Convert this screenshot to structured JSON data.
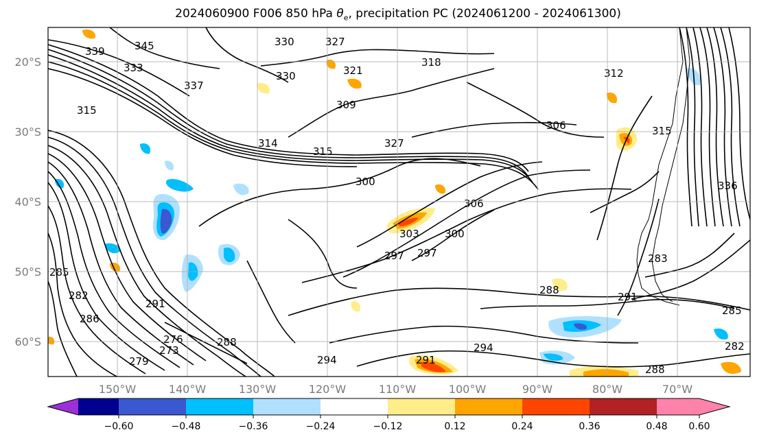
{
  "title": {
    "prefix": "2024060900 F006 850 hPa ",
    "theta": "θ",
    "sub": "e",
    "suffix": ", precipitation PC (2024061200 - 2024061300)"
  },
  "map": {
    "lon_labels": [
      "150°W",
      "140°W",
      "130°W",
      "120°W",
      "110°W",
      "100°W",
      "90°W",
      "80°W",
      "70°W"
    ],
    "lat_labels": [
      "20°S",
      "30°S",
      "40°S",
      "50°S",
      "60°S"
    ],
    "grid": true
  },
  "colorbar": {
    "ticks": [
      "−0.60",
      "−0.48",
      "−0.36",
      "−0.24",
      "−0.12",
      "0.12",
      "0.24",
      "0.36",
      "0.48",
      "0.60"
    ],
    "colors": [
      "#9b30d8",
      "#000090",
      "#3a58cf",
      "#00bfff",
      "#b0e0ff",
      "#ffffff",
      "#ffed8a",
      "#ffa500",
      "#ff4500",
      "#b22222",
      "#ff82ab"
    ]
  },
  "contour_labels": [
    "339",
    "345",
    "330",
    "327",
    "333",
    "318",
    "312",
    "321",
    "330",
    "337",
    "309",
    "315",
    "306",
    "327",
    "300",
    "303",
    "306",
    "297",
    "300",
    "285",
    "282",
    "286",
    "291",
    "276",
    "273",
    "279",
    "288",
    "294",
    "297",
    "291",
    "288",
    "291",
    "285",
    "282",
    "288",
    "294",
    "336",
    "314",
    "315",
    "283",
    "315"
  ]
}
